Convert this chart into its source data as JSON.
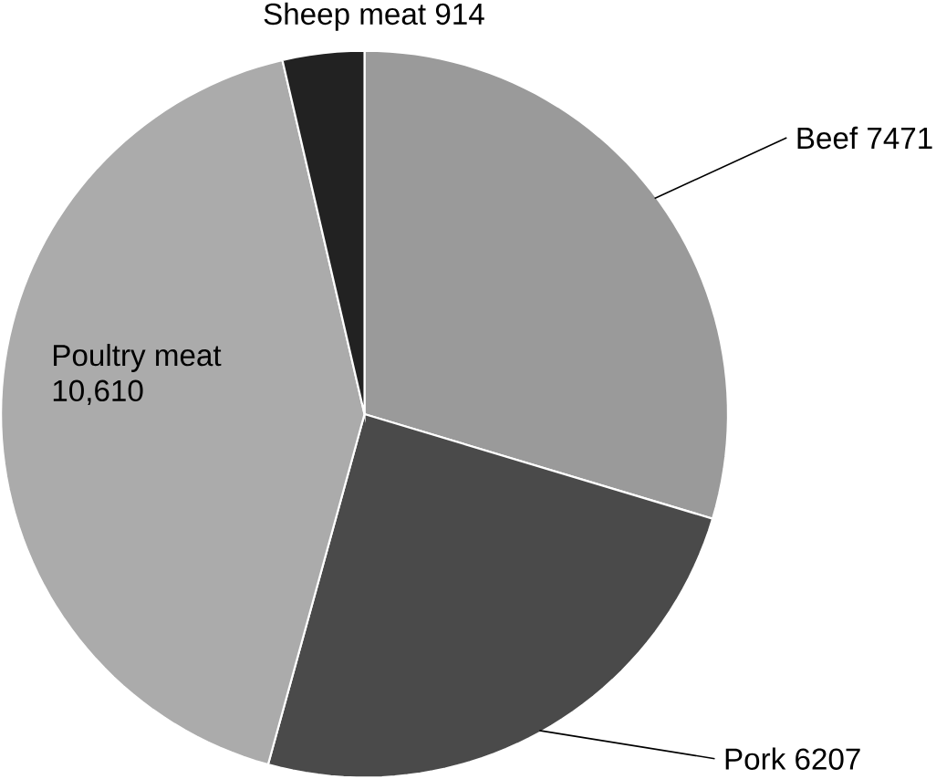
{
  "chart_data": {
    "type": "pie",
    "categories": [
      "Beef",
      "Pork",
      "Poultry meat",
      "Sheep meat"
    ],
    "values": [
      7471,
      6207,
      10610,
      914
    ],
    "value_labels": [
      "7471",
      "6207",
      "10,610",
      "914"
    ],
    "colors": [
      "#9a9a9a",
      "#4a4a4a",
      "#ababab",
      "#222222"
    ]
  }
}
